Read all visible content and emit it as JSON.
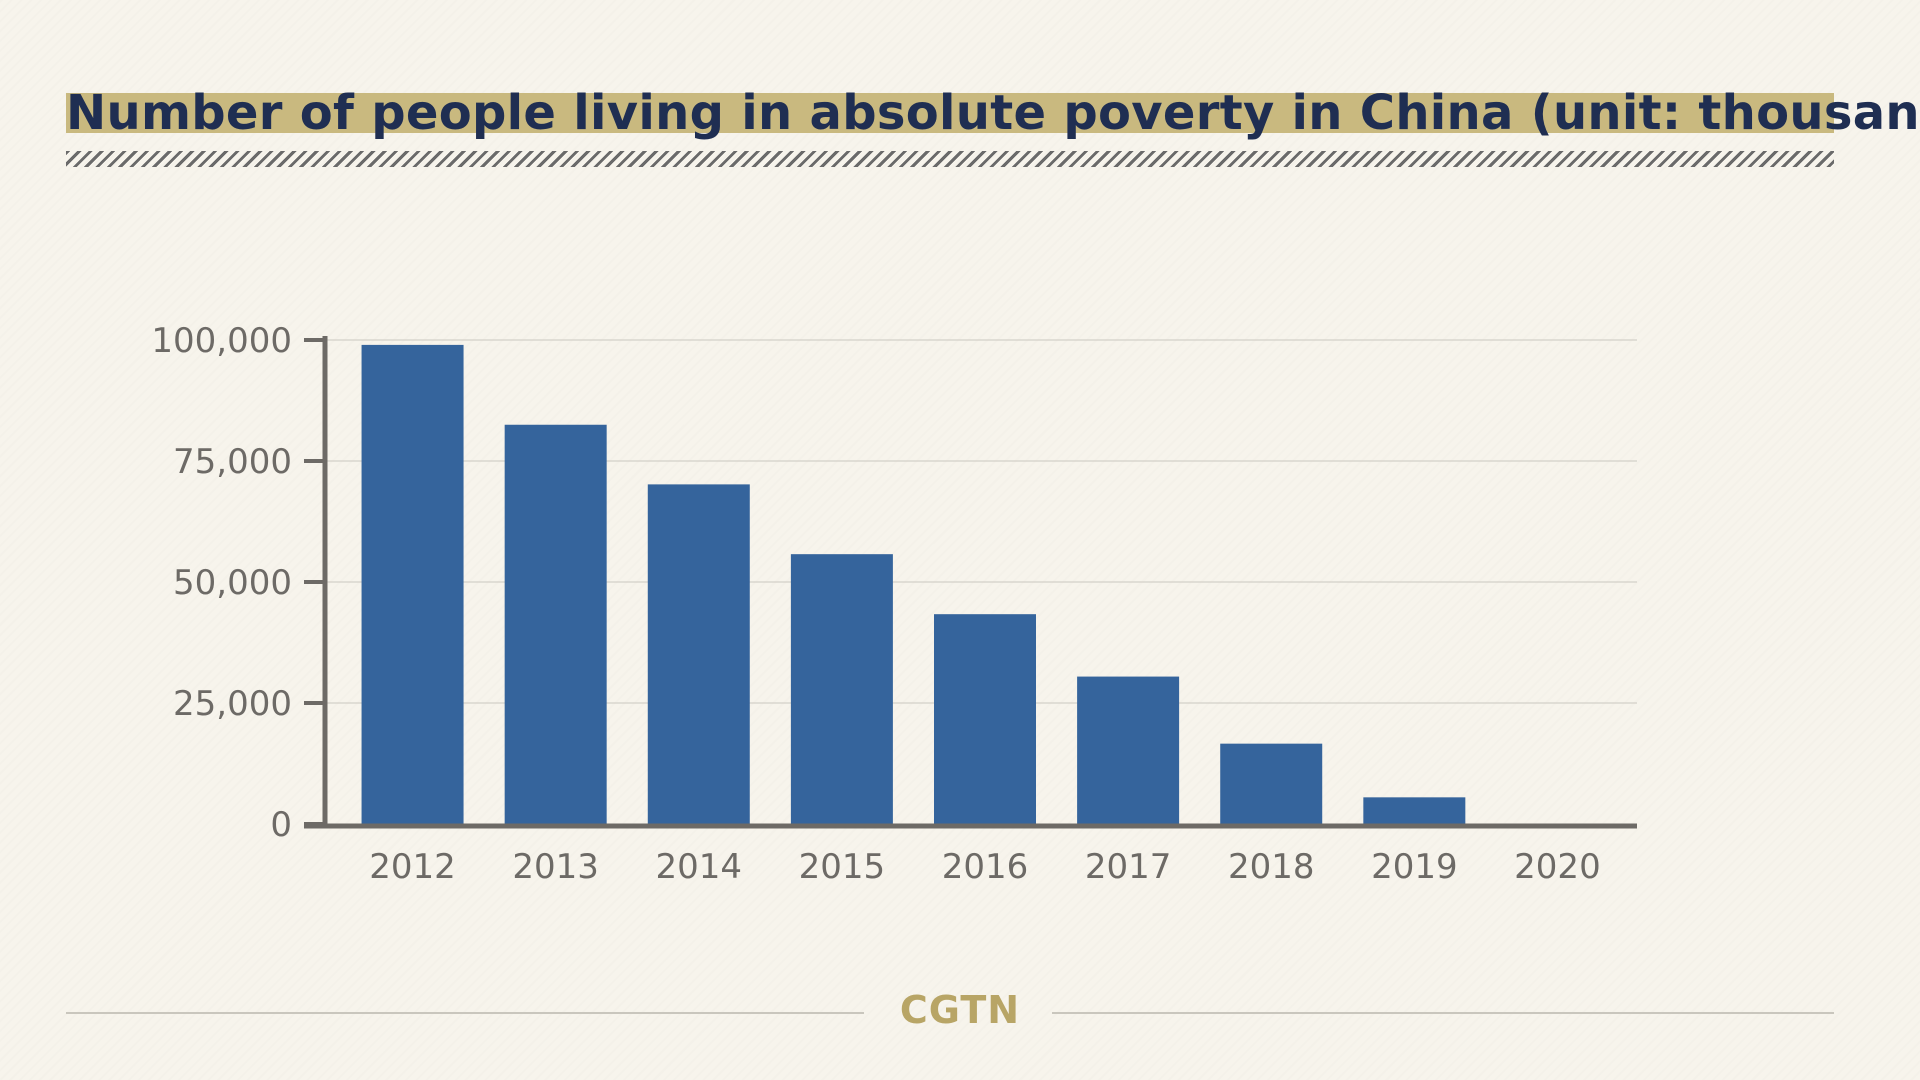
{
  "title": "Number of people living in absolute poverty in China (unit: thousand)",
  "brand": "CGTN",
  "colors": {
    "bar": "#35649c",
    "title": "#1f2e52",
    "highlight": "#c9b97f",
    "axis": "#6d6a66",
    "grid": "#d9d6ce",
    "brand": "#b8a566"
  },
  "chart_data": {
    "type": "bar",
    "title": "Number of people living in absolute poverty in China (unit: thousand)",
    "xlabel": "",
    "ylabel": "",
    "categories": [
      "2012",
      "2013",
      "2014",
      "2015",
      "2016",
      "2017",
      "2018",
      "2019",
      "2020"
    ],
    "values": [
      98990,
      82490,
      70170,
      55750,
      43350,
      30460,
      16600,
      5510,
      0
    ],
    "ylim": [
      0,
      100000
    ],
    "yticks": [
      0,
      25000,
      50000,
      75000,
      100000
    ],
    "ytick_labels": [
      "0",
      "25,000",
      "50,000",
      "75,000",
      "100,000"
    ],
    "grid": true,
    "legend": "none"
  }
}
